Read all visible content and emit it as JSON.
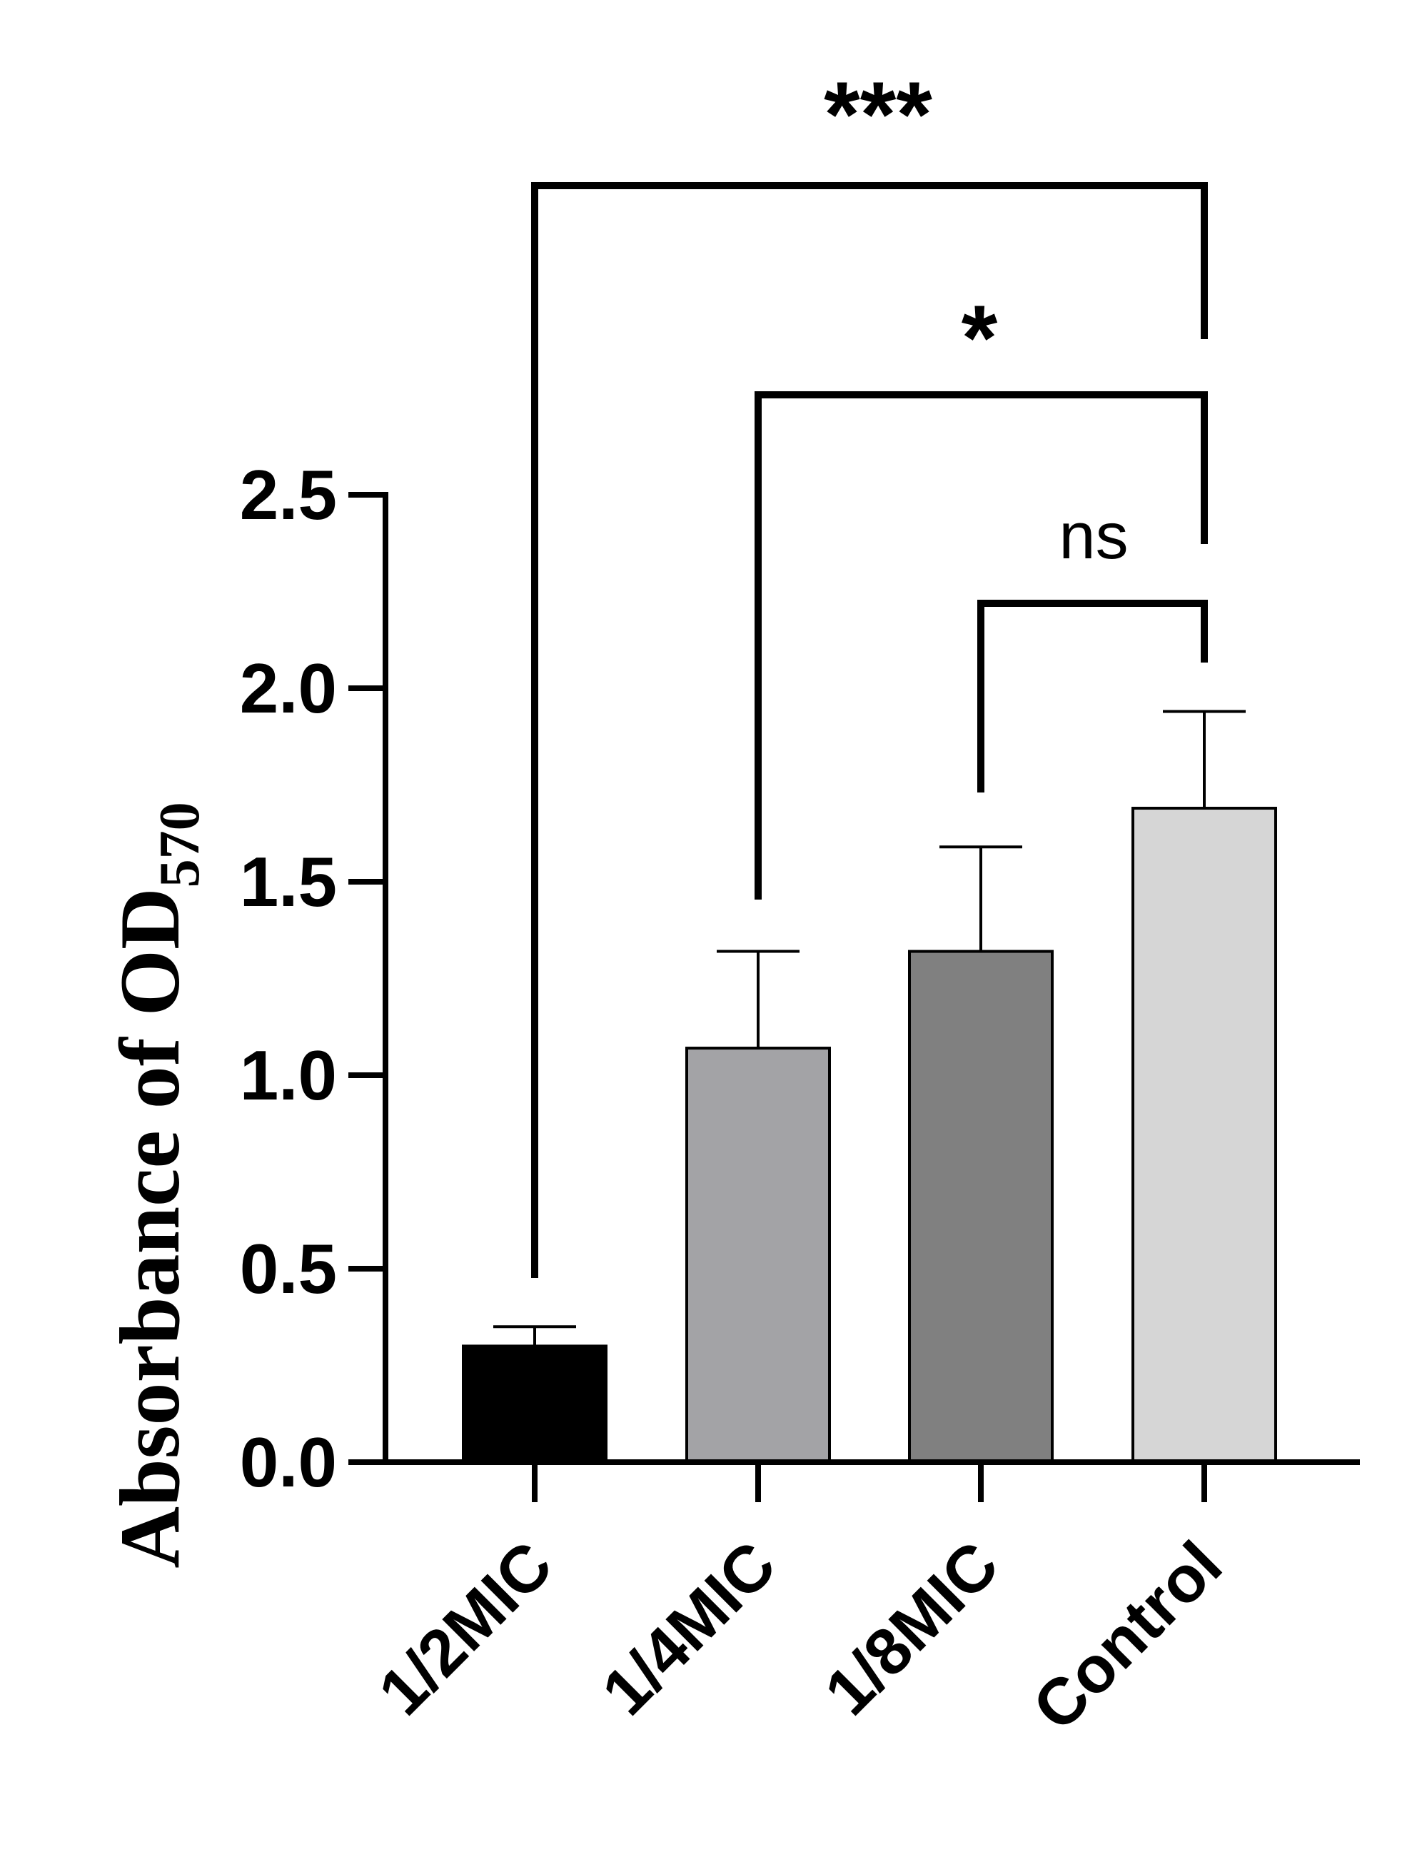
{
  "chart_data": {
    "type": "bar",
    "title": "",
    "xlabel": "",
    "ylabel": "Absorbance of OD",
    "ylabel_subscript": "570",
    "ylim": [
      0,
      2.5
    ],
    "yticks": [
      "0.0",
      "0.5",
      "1.0",
      "1.5",
      "2.0",
      "2.5"
    ],
    "ytick_values": [
      0,
      0.5,
      1.0,
      1.5,
      2.0,
      2.5
    ],
    "categories": [
      "1/2MIC",
      "1/4MIC",
      "1/8MIC",
      "Control"
    ],
    "values": [
      0.3,
      1.07,
      1.32,
      1.69
    ],
    "errors": [
      0.05,
      0.25,
      0.27,
      0.25
    ],
    "colors": [
      "#000000",
      "#a3a3a6",
      "#808080",
      "#d6d6d6"
    ],
    "comparisons": [
      {
        "from": "1/2MIC",
        "to": "Control",
        "label": "***"
      },
      {
        "from": "1/4MIC",
        "to": "Control",
        "label": "*"
      },
      {
        "from": "1/8MIC",
        "to": "Control",
        "label": "ns"
      }
    ]
  }
}
